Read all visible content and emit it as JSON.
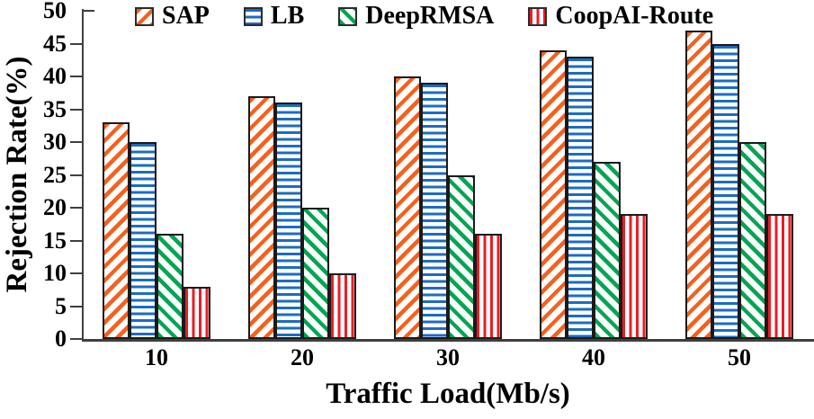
{
  "chart_data": {
    "type": "bar",
    "title": "",
    "xlabel": "Traffic Load(Mb/s)",
    "ylabel": "Rejection Rate(%)",
    "categories": [
      "10",
      "20",
      "30",
      "40",
      "50"
    ],
    "series": [
      {
        "name": "SAP",
        "color": "#F4611E",
        "hatch": "diagonal-up",
        "values": [
          33,
          37,
          40,
          44,
          47
        ]
      },
      {
        "name": "LB",
        "color": "#1B6CC5",
        "hatch": "horizontal",
        "values": [
          30,
          36,
          39,
          43,
          45
        ]
      },
      {
        "name": "DeepRMSA",
        "color": "#00A651",
        "hatch": "diagonal-down",
        "values": [
          16,
          20,
          25,
          27,
          30
        ]
      },
      {
        "name": "CoopAI-Route",
        "color": "#EC1C24",
        "hatch": "vertical",
        "values": [
          8,
          10,
          16,
          19,
          19
        ]
      }
    ],
    "ylim": [
      0,
      50
    ],
    "yticks": [
      0,
      5,
      10,
      15,
      20,
      25,
      30,
      35,
      40,
      45,
      50
    ],
    "legend_position": "top",
    "grid": false,
    "axis_color": "#3F3F3F",
    "background_color": "#FFFFFF",
    "text_color": "#000000"
  }
}
